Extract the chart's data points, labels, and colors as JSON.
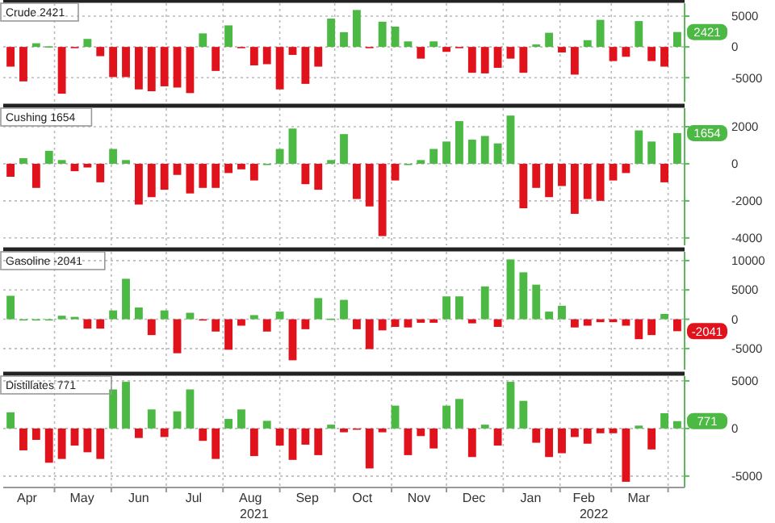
{
  "chart_data": [
    {
      "type": "bar",
      "title": "Crude 2421",
      "x": [
        "2021-04-07",
        "2021-04-14",
        "2021-04-21",
        "2021-04-28",
        "2021-05-05",
        "2021-05-12",
        "2021-05-19",
        "2021-05-26",
        "2021-06-02",
        "2021-06-09",
        "2021-06-16",
        "2021-06-23",
        "2021-06-30",
        "2021-07-07",
        "2021-07-14",
        "2021-07-21",
        "2021-07-28",
        "2021-08-04",
        "2021-08-11",
        "2021-08-18",
        "2021-08-25",
        "2021-09-01",
        "2021-09-08",
        "2021-09-15",
        "2021-09-22",
        "2021-09-29",
        "2021-10-06",
        "2021-10-13",
        "2021-10-20",
        "2021-10-27",
        "2021-11-03",
        "2021-11-10",
        "2021-11-17",
        "2021-11-24",
        "2021-12-01",
        "2021-12-08",
        "2021-12-15",
        "2021-12-22",
        "2021-12-29",
        "2022-01-05",
        "2022-01-12",
        "2022-01-19",
        "2022-01-26",
        "2022-02-02",
        "2022-02-09",
        "2022-02-16",
        "2022-02-23",
        "2022-03-02",
        "2022-03-09",
        "2022-03-16",
        "2022-03-23",
        "2022-03-30",
        "2022-04-06"
      ],
      "values": [
        -3200,
        -5600,
        600,
        100,
        -7600,
        -200,
        1300,
        -1500,
        -4900,
        -4900,
        -6900,
        -7200,
        -6400,
        -6600,
        -7500,
        2200,
        -3900,
        3500,
        -200,
        -3000,
        -2800,
        -6900,
        -1300,
        -6000,
        -3200,
        4600,
        2400,
        6000,
        -200,
        4100,
        3300,
        900,
        -1900,
        900,
        -800,
        -100,
        -4200,
        -4300,
        -3400,
        -1900,
        -4200,
        400,
        2300,
        -900,
        -4500,
        1100,
        4400,
        -2300,
        -1600,
        4200,
        -2300,
        -3200,
        2421
      ],
      "value_labels": [
        null,
        null,
        null,
        null,
        null,
        null,
        null,
        null,
        null,
        null,
        null,
        null,
        null,
        null,
        null,
        null,
        null,
        null,
        null,
        null,
        null,
        null,
        null,
        null,
        null,
        null,
        null,
        null,
        null,
        null,
        null,
        null,
        null,
        null,
        null,
        null,
        null,
        null,
        null,
        null,
        null,
        null,
        null,
        null,
        null,
        null,
        null,
        null,
        null,
        null,
        null,
        null,
        "2421"
      ],
      "colors": [
        "#e0121b",
        "#e0121b",
        "#4cb944",
        "#4cb944",
        "#e0121b",
        "#e0121b",
        "#4cb944",
        "#e0121b",
        "#e0121b",
        "#e0121b",
        "#e0121b",
        "#e0121b",
        "#e0121b",
        "#e0121b",
        "#e0121b",
        "#4cb944",
        "#e0121b",
        "#4cb944",
        "#e0121b",
        "#e0121b",
        "#e0121b",
        "#e0121b",
        "#e0121b",
        "#e0121b",
        "#e0121b",
        "#4cb944",
        "#4cb944",
        "#4cb944",
        "#e0121b",
        "#4cb944",
        "#4cb944",
        "#4cb944",
        "#e0121b",
        "#4cb944",
        "#e0121b",
        "#e0121b",
        "#e0121b",
        "#e0121b",
        "#e0121b",
        "#e0121b",
        "#e0121b",
        "#4cb944",
        "#4cb944",
        "#e0121b",
        "#e0121b",
        "#4cb944",
        "#4cb944",
        "#e0121b",
        "#e0121b",
        "#4cb944",
        "#e0121b",
        "#e0121b",
        "#4cb944"
      ],
      "xlim": [
        "2021-04-03",
        "2022-04-10"
      ],
      "xticks": [
        {
          "value": "2021-05-01",
          "label": null
        },
        {
          "value": "2021-06-01",
          "label": null
        },
        {
          "value": "2021-07-01",
          "label": null
        },
        {
          "value": "2021-08-01",
          "label": null
        },
        {
          "value": "2021-09-01",
          "label": null
        },
        {
          "value": "2021-10-01",
          "label": null
        },
        {
          "value": "2021-11-01",
          "label": null
        },
        {
          "value": "2021-12-01",
          "label": null
        },
        {
          "value": "2022-01-01",
          "label": null
        },
        {
          "value": "2022-02-01",
          "label": null
        },
        {
          "value": "2022-03-01",
          "label": null
        },
        {
          "value": "2022-04-01",
          "label": null
        }
      ],
      "ylim": [
        -8900,
        7100
      ],
      "yticks": [
        -5000,
        0,
        5000
      ],
      "grid": true,
      "tick_labels": "y"
    },
    {
      "type": "bar",
      "title": "Cushing 1654",
      "x": [
        "2021-04-07",
        "2021-04-14",
        "2021-04-21",
        "2021-04-28",
        "2021-05-05",
        "2021-05-12",
        "2021-05-19",
        "2021-05-26",
        "2021-06-02",
        "2021-06-09",
        "2021-06-16",
        "2021-06-23",
        "2021-06-30",
        "2021-07-07",
        "2021-07-14",
        "2021-07-21",
        "2021-07-28",
        "2021-08-04",
        "2021-08-11",
        "2021-08-18",
        "2021-08-25",
        "2021-09-01",
        "2021-09-08",
        "2021-09-15",
        "2021-09-22",
        "2021-09-29",
        "2021-10-06",
        "2021-10-13",
        "2021-10-20",
        "2021-10-27",
        "2021-11-03",
        "2021-11-10",
        "2021-11-17",
        "2021-11-24",
        "2021-12-01",
        "2021-12-08",
        "2021-12-15",
        "2021-12-22",
        "2021-12-29",
        "2022-01-05",
        "2022-01-12",
        "2022-01-19",
        "2022-01-26",
        "2022-02-02",
        "2022-02-09",
        "2022-02-16",
        "2022-02-23",
        "2022-03-02",
        "2022-03-09",
        "2022-03-16",
        "2022-03-23",
        "2022-03-30",
        "2022-04-06"
      ],
      "values": [
        -700,
        300,
        -1300,
        700,
        200,
        -400,
        -200,
        -1000,
        800,
        200,
        -2200,
        -1800,
        -1400,
        -600,
        -1600,
        -1300,
        -1300,
        -500,
        -300,
        -900,
        0,
        800,
        1900,
        -1100,
        -1400,
        200,
        1600,
        -1900,
        -2300,
        -3900,
        -900,
        0,
        200,
        800,
        1200,
        2300,
        1300,
        1500,
        1100,
        2600,
        -2400,
        -1300,
        -1800,
        -1200,
        -2700,
        -1900,
        -2000,
        -900,
        -500,
        1800,
        1200,
        -1000,
        1654
      ],
      "value_labels": [
        null,
        null,
        null,
        null,
        null,
        null,
        null,
        null,
        null,
        null,
        null,
        null,
        null,
        null,
        null,
        null,
        null,
        null,
        null,
        null,
        null,
        null,
        null,
        null,
        null,
        null,
        null,
        null,
        null,
        null,
        null,
        null,
        null,
        null,
        null,
        null,
        null,
        null,
        null,
        null,
        null,
        null,
        null,
        null,
        null,
        null,
        null,
        null,
        null,
        null,
        null,
        null,
        "1654"
      ],
      "colors": [
        "#e0121b",
        "#4cb944",
        "#e0121b",
        "#4cb944",
        "#4cb944",
        "#e0121b",
        "#e0121b",
        "#e0121b",
        "#4cb944",
        "#4cb944",
        "#e0121b",
        "#e0121b",
        "#e0121b",
        "#e0121b",
        "#e0121b",
        "#e0121b",
        "#e0121b",
        "#e0121b",
        "#e0121b",
        "#e0121b",
        "#4cb944",
        "#4cb944",
        "#4cb944",
        "#e0121b",
        "#e0121b",
        "#4cb944",
        "#4cb944",
        "#e0121b",
        "#e0121b",
        "#e0121b",
        "#e0121b",
        "#4cb944",
        "#4cb944",
        "#4cb944",
        "#4cb944",
        "#4cb944",
        "#4cb944",
        "#4cb944",
        "#4cb944",
        "#4cb944",
        "#e0121b",
        "#e0121b",
        "#e0121b",
        "#e0121b",
        "#e0121b",
        "#e0121b",
        "#e0121b",
        "#e0121b",
        "#e0121b",
        "#4cb944",
        "#4cb944",
        "#e0121b",
        "#4cb944"
      ],
      "xlim": [
        "2021-04-03",
        "2022-04-10"
      ],
      "xticks": [
        {
          "value": "2021-05-01",
          "label": null
        },
        {
          "value": "2021-06-01",
          "label": null
        },
        {
          "value": "2021-07-01",
          "label": null
        },
        {
          "value": "2021-08-01",
          "label": null
        },
        {
          "value": "2021-09-01",
          "label": null
        },
        {
          "value": "2021-10-01",
          "label": null
        },
        {
          "value": "2021-11-01",
          "label": null
        },
        {
          "value": "2021-12-01",
          "label": null
        },
        {
          "value": "2022-01-01",
          "label": null
        },
        {
          "value": "2022-02-01",
          "label": null
        },
        {
          "value": "2022-03-01",
          "label": null
        },
        {
          "value": "2022-04-01",
          "label": null
        }
      ],
      "ylim": [
        -4400,
        3000
      ],
      "yticks": [
        -4000,
        -2000,
        0,
        2000
      ],
      "grid": true,
      "tick_labels": "y"
    },
    {
      "type": "bar",
      "title": "Gasoline -2041",
      "x": [
        "2021-04-07",
        "2021-04-14",
        "2021-04-21",
        "2021-04-28",
        "2021-05-05",
        "2021-05-12",
        "2021-05-19",
        "2021-05-26",
        "2021-06-02",
        "2021-06-09",
        "2021-06-16",
        "2021-06-23",
        "2021-06-30",
        "2021-07-07",
        "2021-07-14",
        "2021-07-21",
        "2021-07-28",
        "2021-08-04",
        "2021-08-11",
        "2021-08-18",
        "2021-08-25",
        "2021-09-01",
        "2021-09-08",
        "2021-09-15",
        "2021-09-22",
        "2021-09-29",
        "2021-10-06",
        "2021-10-13",
        "2021-10-20",
        "2021-10-27",
        "2021-11-03",
        "2021-11-10",
        "2021-11-17",
        "2021-11-24",
        "2021-12-01",
        "2021-12-08",
        "2021-12-15",
        "2021-12-22",
        "2021-12-29",
        "2022-01-05",
        "2022-01-12",
        "2022-01-19",
        "2022-01-26",
        "2022-02-02",
        "2022-02-09",
        "2022-02-16",
        "2022-02-23",
        "2022-03-02",
        "2022-03-09",
        "2022-03-16",
        "2022-03-23",
        "2022-03-30",
        "2022-04-06"
      ],
      "values": [
        4000,
        0,
        0,
        0,
        600,
        400,
        -1600,
        -1600,
        1500,
        6900,
        2000,
        -2700,
        1500,
        -5800,
        1100,
        0,
        -2100,
        -5200,
        -1100,
        700,
        -2100,
        1300,
        -7000,
        -1700,
        3600,
        100,
        3300,
        -1700,
        -5100,
        -1900,
        -1300,
        -1400,
        -600,
        -600,
        3900,
        3900,
        -700,
        5600,
        -1300,
        10200,
        8000,
        5900,
        1300,
        2300,
        -1400,
        -1100,
        -500,
        -500,
        -1100,
        -3400,
        -2700,
        900,
        -2041
      ],
      "value_labels": [
        null,
        null,
        null,
        null,
        null,
        null,
        null,
        null,
        null,
        null,
        null,
        null,
        null,
        null,
        null,
        null,
        null,
        null,
        null,
        null,
        null,
        null,
        null,
        null,
        null,
        null,
        null,
        null,
        null,
        null,
        null,
        null,
        null,
        null,
        null,
        null,
        null,
        null,
        null,
        null,
        null,
        null,
        null,
        null,
        null,
        null,
        null,
        null,
        null,
        null,
        null,
        null,
        "-2041"
      ],
      "colors": [
        "#4cb944",
        "#4cb944",
        "#4cb944",
        "#4cb944",
        "#4cb944",
        "#4cb944",
        "#e0121b",
        "#e0121b",
        "#4cb944",
        "#4cb944",
        "#4cb944",
        "#e0121b",
        "#4cb944",
        "#e0121b",
        "#4cb944",
        "#e0121b",
        "#e0121b",
        "#e0121b",
        "#e0121b",
        "#4cb944",
        "#e0121b",
        "#4cb944",
        "#e0121b",
        "#e0121b",
        "#4cb944",
        "#4cb944",
        "#4cb944",
        "#e0121b",
        "#e0121b",
        "#e0121b",
        "#e0121b",
        "#e0121b",
        "#e0121b",
        "#e0121b",
        "#4cb944",
        "#4cb944",
        "#e0121b",
        "#4cb944",
        "#e0121b",
        "#4cb944",
        "#4cb944",
        "#4cb944",
        "#4cb944",
        "#4cb944",
        "#e0121b",
        "#e0121b",
        "#e0121b",
        "#e0121b",
        "#e0121b",
        "#e0121b",
        "#e0121b",
        "#4cb944",
        "#e0121b"
      ],
      "xlim": [
        "2021-04-03",
        "2022-04-10"
      ],
      "xticks": [
        {
          "value": "2021-05-01",
          "label": null
        },
        {
          "value": "2021-06-01",
          "label": null
        },
        {
          "value": "2021-07-01",
          "label": null
        },
        {
          "value": "2021-08-01",
          "label": null
        },
        {
          "value": "2021-09-01",
          "label": null
        },
        {
          "value": "2021-10-01",
          "label": null
        },
        {
          "value": "2021-11-01",
          "label": null
        },
        {
          "value": "2021-12-01",
          "label": null
        },
        {
          "value": "2022-01-01",
          "label": null
        },
        {
          "value": "2022-02-01",
          "label": null
        },
        {
          "value": "2022-03-01",
          "label": null
        },
        {
          "value": "2022-04-01",
          "label": null
        }
      ],
      "ylim": [
        -8600,
        11500
      ],
      "yticks": [
        -5000,
        0,
        5000,
        10000
      ],
      "grid": true,
      "tick_labels": "y"
    },
    {
      "type": "bar",
      "title": "Distillates 771",
      "x": [
        "2021-04-07",
        "2021-04-14",
        "2021-04-21",
        "2021-04-28",
        "2021-05-05",
        "2021-05-12",
        "2021-05-19",
        "2021-05-26",
        "2021-06-02",
        "2021-06-09",
        "2021-06-16",
        "2021-06-23",
        "2021-06-30",
        "2021-07-07",
        "2021-07-14",
        "2021-07-21",
        "2021-07-28",
        "2021-08-04",
        "2021-08-11",
        "2021-08-18",
        "2021-08-25",
        "2021-09-01",
        "2021-09-08",
        "2021-09-15",
        "2021-09-22",
        "2021-09-29",
        "2021-10-06",
        "2021-10-13",
        "2021-10-20",
        "2021-10-27",
        "2021-11-03",
        "2021-11-10",
        "2021-11-17",
        "2021-11-24",
        "2021-12-01",
        "2021-12-08",
        "2021-12-15",
        "2021-12-22",
        "2021-12-29",
        "2022-01-05",
        "2022-01-12",
        "2022-01-19",
        "2022-01-26",
        "2022-02-02",
        "2022-02-09",
        "2022-02-16",
        "2022-02-23",
        "2022-03-02",
        "2022-03-09",
        "2022-03-16",
        "2022-03-23",
        "2022-03-30",
        "2022-04-06"
      ],
      "values": [
        1700,
        -2300,
        -1200,
        -3600,
        -3200,
        -1800,
        -2500,
        -3200,
        4100,
        4900,
        -1000,
        2000,
        -900,
        1800,
        4100,
        -1300,
        -3200,
        1000,
        2000,
        -2900,
        800,
        -1800,
        -3300,
        -1700,
        -2800,
        400,
        -400,
        0,
        -4200,
        -400,
        2400,
        -2800,
        -800,
        -2100,
        2400,
        3100,
        -3000,
        400,
        -1800,
        4900,
        2900,
        -1500,
        -3000,
        -2600,
        -900,
        -1600,
        -500,
        -500,
        -5600,
        300,
        -2200,
        1600,
        771
      ],
      "value_labels": [
        null,
        null,
        null,
        null,
        null,
        null,
        null,
        null,
        null,
        null,
        null,
        null,
        null,
        null,
        null,
        null,
        null,
        null,
        null,
        null,
        null,
        null,
        null,
        null,
        null,
        null,
        null,
        null,
        null,
        null,
        null,
        null,
        null,
        null,
        null,
        null,
        null,
        null,
        null,
        null,
        null,
        null,
        null,
        null,
        null,
        null,
        null,
        null,
        null,
        null,
        null,
        null,
        "771"
      ],
      "colors": [
        "#4cb944",
        "#e0121b",
        "#e0121b",
        "#e0121b",
        "#e0121b",
        "#e0121b",
        "#e0121b",
        "#e0121b",
        "#4cb944",
        "#4cb944",
        "#e0121b",
        "#4cb944",
        "#e0121b",
        "#4cb944",
        "#4cb944",
        "#e0121b",
        "#e0121b",
        "#4cb944",
        "#4cb944",
        "#e0121b",
        "#4cb944",
        "#e0121b",
        "#e0121b",
        "#e0121b",
        "#e0121b",
        "#4cb944",
        "#e0121b",
        "#e0121b",
        "#e0121b",
        "#e0121b",
        "#4cb944",
        "#e0121b",
        "#e0121b",
        "#e0121b",
        "#4cb944",
        "#4cb944",
        "#e0121b",
        "#4cb944",
        "#e0121b",
        "#4cb944",
        "#4cb944",
        "#e0121b",
        "#e0121b",
        "#e0121b",
        "#e0121b",
        "#e0121b",
        "#e0121b",
        "#e0121b",
        "#e0121b",
        "#4cb944",
        "#e0121b",
        "#4cb944",
        "#4cb944"
      ],
      "xlim": [
        "2021-04-03",
        "2022-04-10"
      ],
      "xticks": [
        {
          "value": "2021-04-16",
          "label": "Apr"
        },
        {
          "value": "2021-05-01",
          "label": null
        },
        {
          "value": "2021-05-16",
          "label": "May"
        },
        {
          "value": "2021-06-01",
          "label": null
        },
        {
          "value": "2021-06-16",
          "label": "Jun"
        },
        {
          "value": "2021-07-01",
          "label": null
        },
        {
          "value": "2021-07-16",
          "label": "Jul"
        },
        {
          "value": "2021-08-01",
          "label": null
        },
        {
          "value": "2021-08-16",
          "label": "Aug"
        },
        {
          "value": "2021-09-01",
          "label": null
        },
        {
          "value": "2021-09-16",
          "label": "Sep"
        },
        {
          "value": "2021-10-01",
          "label": null
        },
        {
          "value": "2021-10-16",
          "label": "Oct"
        },
        {
          "value": "2021-11-01",
          "label": null
        },
        {
          "value": "2021-11-16",
          "label": "Nov"
        },
        {
          "value": "2021-12-01",
          "label": null
        },
        {
          "value": "2021-12-16",
          "label": "Dec"
        },
        {
          "value": "2022-01-01",
          "label": null
        },
        {
          "value": "2022-01-16",
          "label": "Jan"
        },
        {
          "value": "2022-02-01",
          "label": null
        },
        {
          "value": "2022-02-14",
          "label": "Feb"
        },
        {
          "value": "2022-03-01",
          "label": null
        },
        {
          "value": "2022-03-16",
          "label": "Mar"
        },
        {
          "value": "2022-04-01",
          "label": null
        }
      ],
      "ylim": [
        -6200,
        5500
      ],
      "yticks": [
        -5000,
        0,
        5000
      ],
      "grid": true,
      "annotations": [
        "2021",
        "2022"
      ]
    }
  ]
}
